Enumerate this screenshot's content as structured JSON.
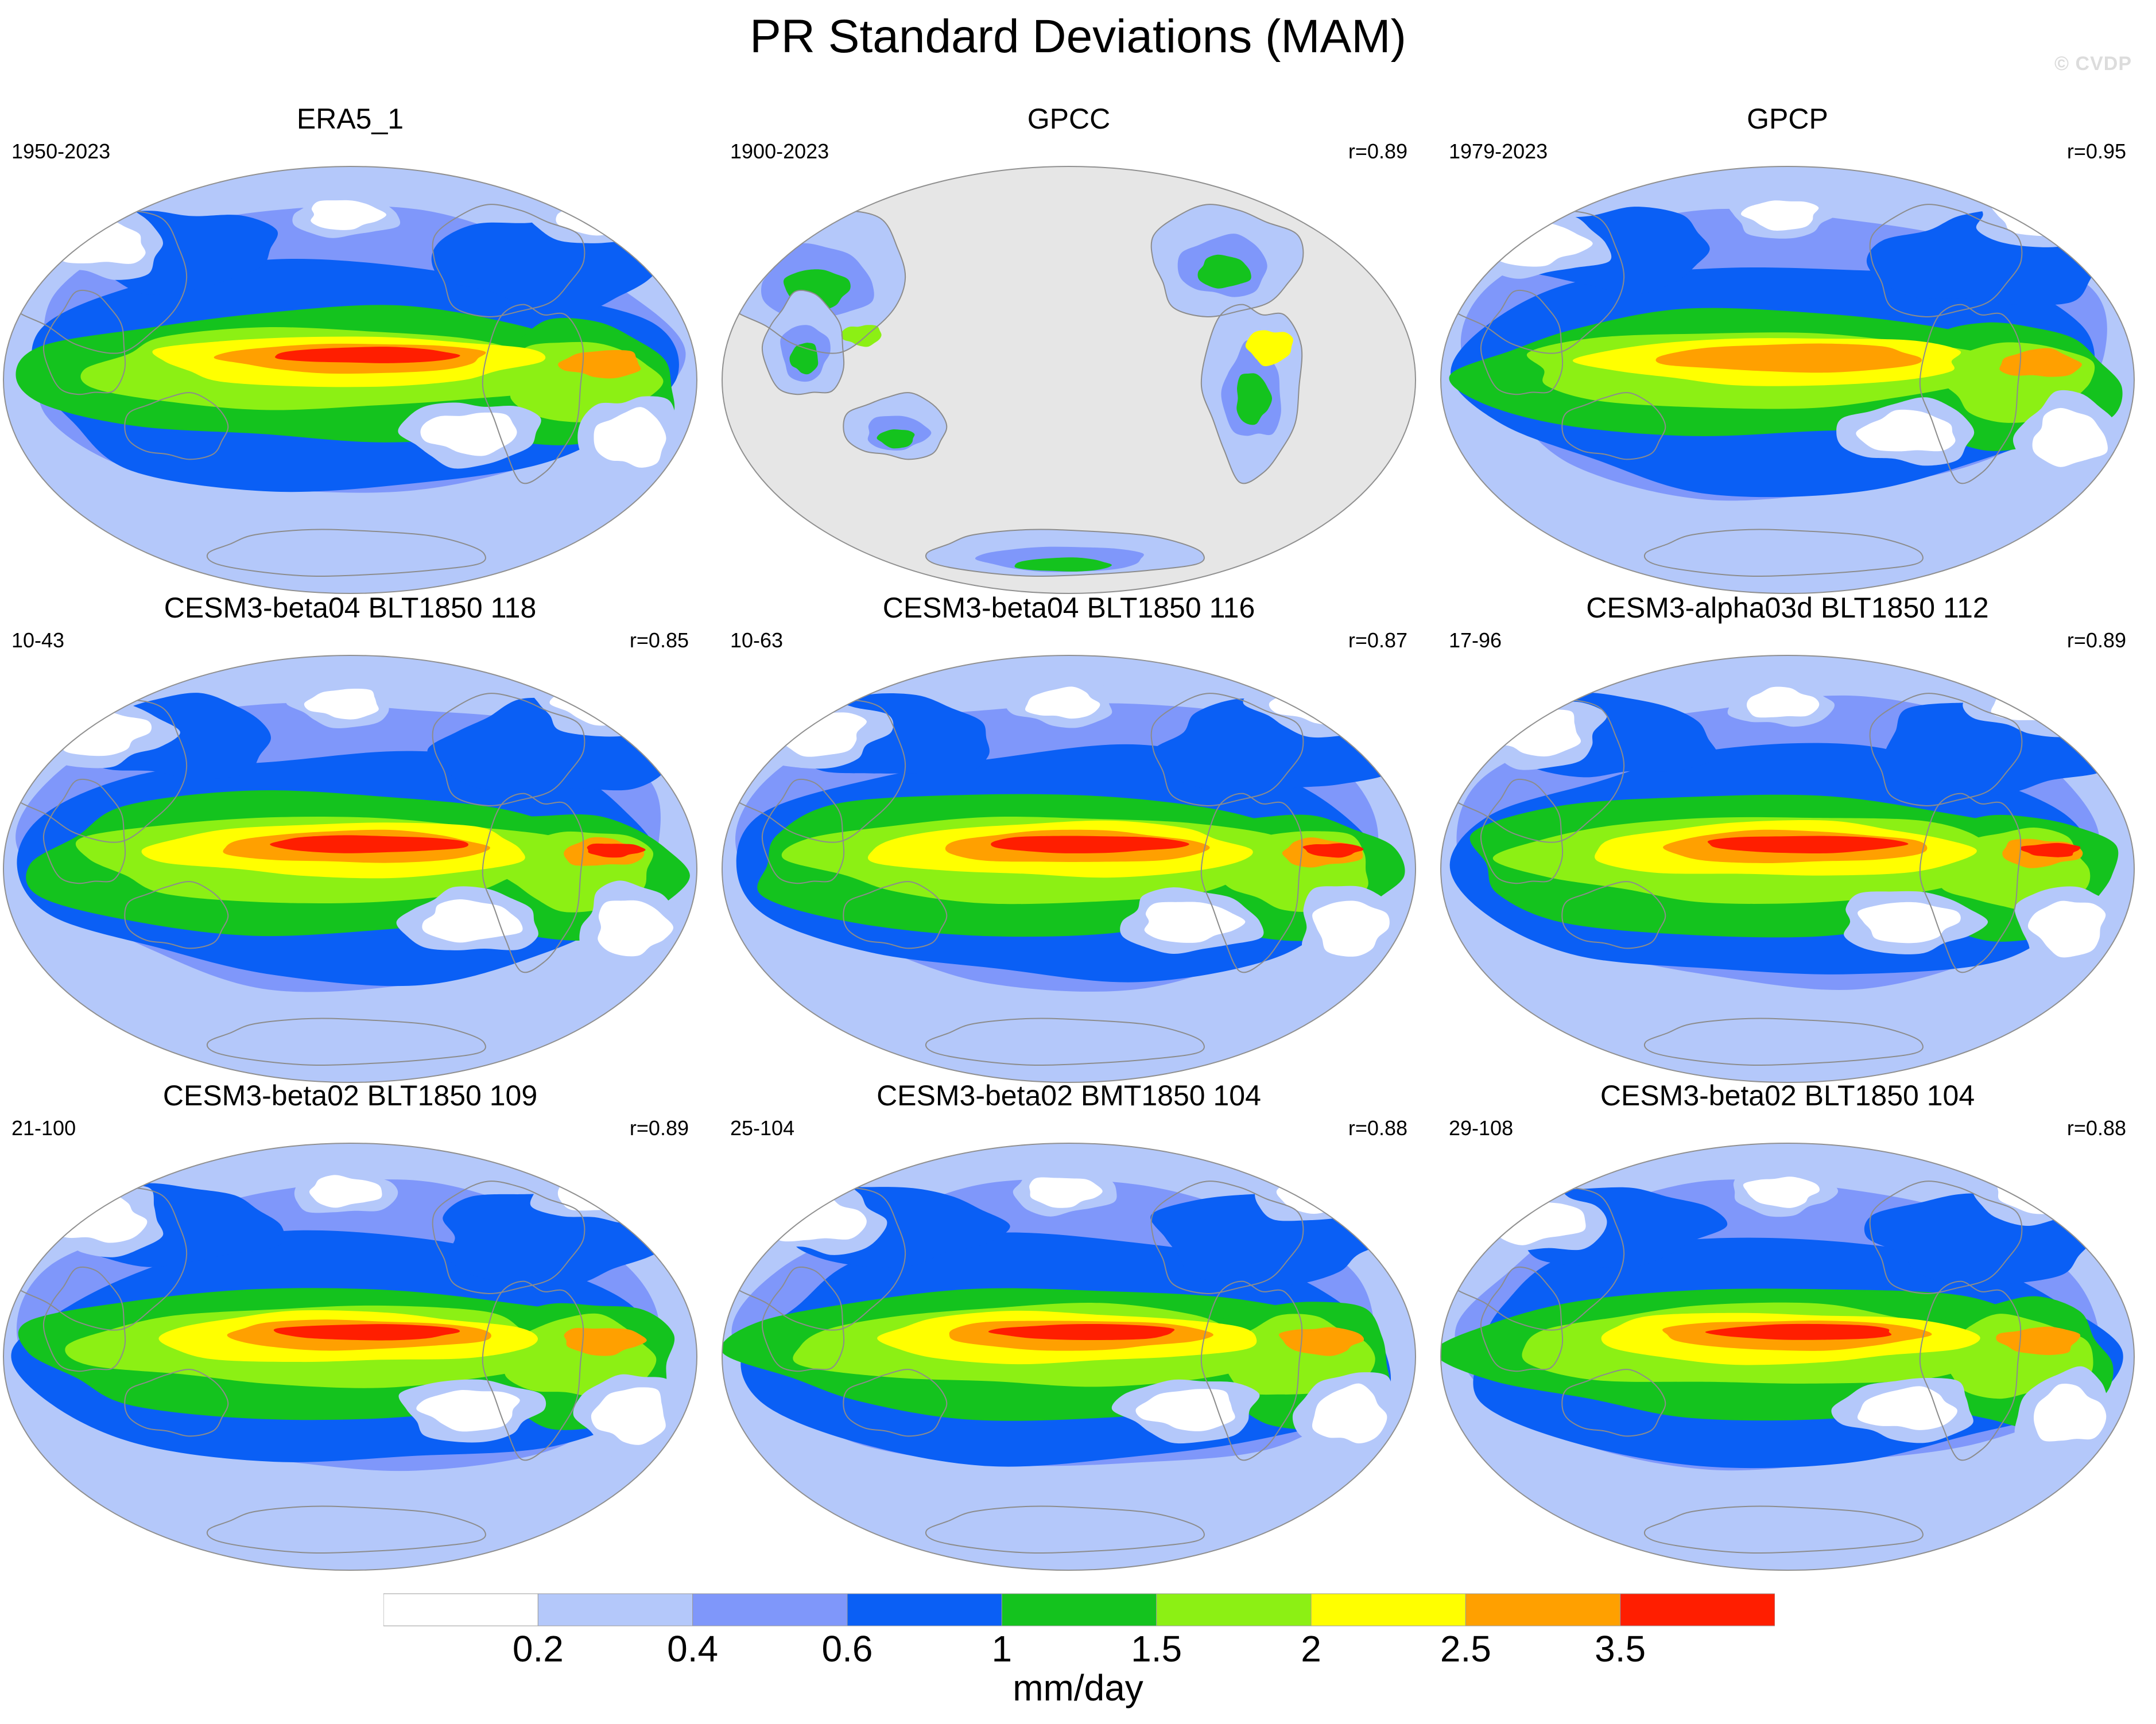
{
  "title": "PR Standard Deviations (MAM)",
  "watermark": "© CVDP",
  "panels": [
    {
      "title": "ERA5_1",
      "period": "1950-2023",
      "corr": "",
      "kind": "reanalysis"
    },
    {
      "title": "GPCC",
      "period": "1900-2023",
      "corr": "r=0.89",
      "kind": "land"
    },
    {
      "title": "GPCP",
      "period": "1979-2023",
      "corr": "r=0.95",
      "kind": "satellite"
    },
    {
      "title": "CESM3-beta04 BLT1850 118",
      "period": "10-43",
      "corr": "r=0.85",
      "kind": "model_strong"
    },
    {
      "title": "CESM3-beta04 BLT1850 116",
      "period": "10-63",
      "corr": "r=0.87",
      "kind": "model_strong"
    },
    {
      "title": "CESM3-alpha03d BLT1850 112",
      "period": "17-96",
      "corr": "r=0.89",
      "kind": "model_strong"
    },
    {
      "title": "CESM3-beta02 BLT1850 109",
      "period": "21-100",
      "corr": "r=0.89",
      "kind": "model"
    },
    {
      "title": "CESM3-beta02 BMT1850 104",
      "period": "25-104",
      "corr": "r=0.88",
      "kind": "model"
    },
    {
      "title": "CESM3-beta02 BLT1850 104",
      "period": "29-108",
      "corr": "r=0.88",
      "kind": "model"
    }
  ],
  "colorbar": {
    "units": "mm/day",
    "labels": [
      "0.2",
      "0.4",
      "0.6",
      "1",
      "1.5",
      "2",
      "2.5",
      "3.5"
    ],
    "colors": [
      "#ffffff",
      "#b4c8fa",
      "#7f97fa",
      "#0a5ff5",
      "#14c31e",
      "#8cf014",
      "#ffff00",
      "#ffa000",
      "#ff1e00"
    ]
  },
  "colors": {
    "missing": "#e6e6e6",
    "coastline": "#8c8c8c"
  }
}
